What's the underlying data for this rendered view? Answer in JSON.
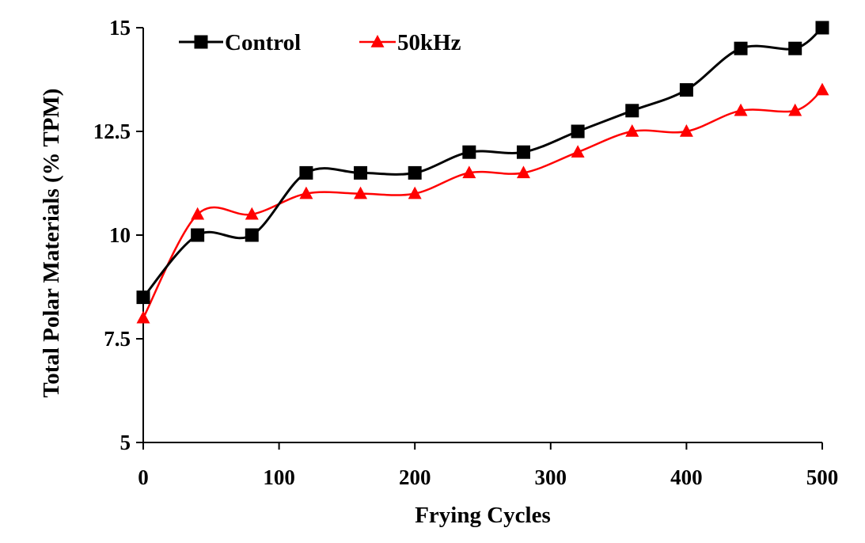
{
  "chart_data": {
    "type": "line",
    "title": "",
    "xlabel": "Frying Cycles",
    "ylabel": "Total Polar Materials (% TPM)",
    "xlim": [
      0,
      500
    ],
    "ylim": [
      5,
      15
    ],
    "x_ticks": [
      0,
      100,
      200,
      300,
      400,
      500
    ],
    "x_tick_labels": [
      "0",
      "100",
      "200",
      "300",
      "400",
      "500"
    ],
    "y_ticks": [
      5,
      7.5,
      10,
      12.5,
      15
    ],
    "y_tick_labels": [
      "5",
      "7.5",
      "10",
      "12.5",
      "15"
    ],
    "grid": false,
    "legend_position": "top-left",
    "smooth": true,
    "x": [
      0,
      40,
      80,
      120,
      160,
      200,
      240,
      280,
      320,
      360,
      400,
      440,
      480,
      500
    ],
    "series": [
      {
        "name": "Control",
        "color": "#000000",
        "marker": "square",
        "values": [
          8.5,
          10,
          10,
          11.5,
          11.5,
          11.5,
          12,
          12,
          12.5,
          13,
          13.5,
          14.5,
          14.5,
          15
        ]
      },
      {
        "name": "50kHz",
        "color": "#ff0000",
        "marker": "triangle",
        "values": [
          8,
          10.5,
          10.5,
          11,
          11,
          11,
          11.5,
          11.5,
          12,
          12.5,
          12.5,
          13,
          13,
          13.5
        ]
      }
    ]
  }
}
